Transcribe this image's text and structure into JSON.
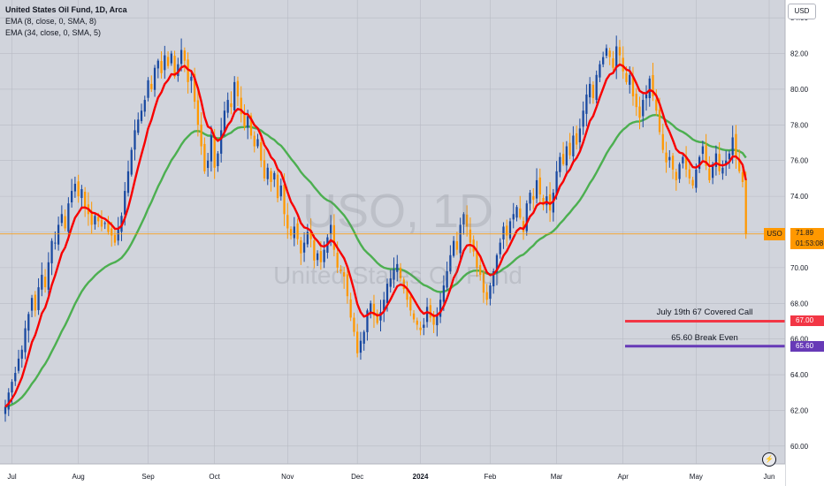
{
  "header": {
    "title": "United States Oil Fund, 1D, Arca",
    "indicators": [
      "EMA (8, close, 0, SMA, 8)",
      "EMA (34, close, 0, SMA, 5)"
    ],
    "currency_button": "USD"
  },
  "watermark": {
    "big": "USO, 1D",
    "small": "United States Oil Fund"
  },
  "price_badge": {
    "symbol": "USO",
    "price": "71.89",
    "countdown": "01:53:08"
  },
  "annotations": [
    {
      "label": "July 19th 67 Covered Call",
      "price": 67.0,
      "badge": "67.00",
      "color": "#f23645"
    },
    {
      "label": "65.60 Break Even",
      "price": 65.6,
      "badge": "65.60",
      "color": "#673ab7"
    }
  ],
  "flash_icon": "lightning-icon",
  "colors": {
    "up": "#1848a0",
    "down": "#ff9800",
    "ema_fast": "#f80000",
    "ema_slow": "#4caf50",
    "background": "#d1d4dc"
  },
  "chart_data": {
    "type": "candlestick",
    "ylim": [
      59,
      85
    ],
    "y_ticks": [
      60,
      62,
      64,
      66,
      68,
      70,
      72,
      74,
      76,
      78,
      80,
      82,
      84
    ],
    "y_tick_labels": [
      "60.00",
      "62.00",
      "64.00",
      "66.00",
      "68.00",
      "70.00",
      "72.00",
      "74.00",
      "76.00",
      "78.00",
      "80.00",
      "82.00",
      "84.00"
    ],
    "x_labels": [
      {
        "label": "Jul",
        "bar": 2
      },
      {
        "label": "Aug",
        "bar": 22
      },
      {
        "label": "Sep",
        "bar": 43
      },
      {
        "label": "Oct",
        "bar": 63
      },
      {
        "label": "Nov",
        "bar": 85
      },
      {
        "label": "Dec",
        "bar": 106
      },
      {
        "label": "2024",
        "bar": 125
      },
      {
        "label": "Feb",
        "bar": 146
      },
      {
        "label": "Mar",
        "bar": 166
      },
      {
        "label": "Apr",
        "bar": 186
      },
      {
        "label": "May",
        "bar": 208
      },
      {
        "label": "Jun",
        "bar": 230
      }
    ],
    "bar_count": 231,
    "close_series": [
      62.2,
      63.0,
      63.6,
      64.1,
      64.9,
      65.4,
      66.6,
      67.4,
      68.3,
      67.6,
      68.9,
      69.6,
      68.9,
      70.3,
      71.5,
      71.4,
      72.4,
      73.0,
      72.2,
      73.6,
      74.3,
      74.7,
      74.0,
      74.4,
      73.4,
      73.0,
      72.4,
      72.9,
      72.6,
      72.3,
      72.5,
      72.0,
      71.8,
      71.4,
      72.2,
      72.9,
      74.3,
      75.4,
      76.6,
      77.7,
      78.3,
      78.8,
      79.4,
      80.5,
      80.0,
      81.2,
      81.6,
      80.9,
      81.9,
      81.3,
      82.0,
      80.7,
      81.4,
      82.2,
      81.6,
      80.4,
      80.7,
      79.3,
      78.0,
      76.8,
      75.4,
      76.0,
      77.4,
      75.6,
      76.4,
      77.7,
      78.8,
      79.4,
      79.0,
      80.4,
      79.6,
      78.6,
      77.9,
      78.5,
      77.4,
      76.8,
      77.2,
      76.0,
      75.0,
      75.6,
      74.8,
      75.3,
      73.9,
      74.6,
      73.0,
      72.2,
      71.8,
      72.3,
      71.6,
      70.8,
      71.4,
      72.0,
      71.6,
      70.4,
      70.8,
      70.3,
      71.0,
      71.7,
      72.4,
      71.0,
      70.0,
      69.8,
      69.5,
      68.4,
      67.2,
      66.4,
      65.2,
      65.9,
      66.4,
      67.6,
      68.0,
      67.3,
      66.9,
      67.5,
      68.2,
      69.1,
      69.4,
      69.9,
      70.2,
      69.4,
      68.8,
      68.2,
      67.6,
      67.1,
      66.8,
      66.5,
      66.8,
      67.8,
      67.2,
      66.8,
      67.4,
      68.2,
      69.0,
      69.8,
      70.7,
      71.5,
      71.0,
      72.4,
      73.0,
      72.3,
      71.4,
      70.9,
      70.0,
      69.6,
      68.6,
      68.2,
      69.0,
      69.8,
      70.7,
      71.4,
      72.3,
      71.8,
      72.6,
      73.0,
      73.4,
      72.8,
      72.0,
      73.6,
      74.2,
      73.8,
      74.9,
      74.1,
      73.5,
      74.0,
      73.2,
      74.2,
      75.4,
      76.2,
      75.8,
      76.8,
      76.3,
      77.4,
      76.9,
      77.8,
      78.8,
      79.7,
      80.3,
      79.5,
      80.8,
      81.4,
      81.8,
      82.3,
      81.8,
      81.2,
      82.4,
      81.9,
      81.0,
      80.4,
      80.8,
      79.6,
      79.0,
      78.4,
      79.4,
      79.7,
      80.6,
      79.6,
      78.8,
      77.6,
      76.6,
      75.9,
      76.2,
      75.5,
      74.9,
      75.8,
      76.2,
      75.5,
      75.0,
      74.6,
      75.5,
      76.2,
      76.8,
      75.7,
      74.9,
      75.8,
      76.4,
      75.4,
      75.6,
      76.0,
      76.4,
      77.3,
      76.2,
      75.4,
      74.8,
      71.89
    ],
    "ema_fast_label": "EMA (8, close, 0, SMA, 8)",
    "ema_slow_label": "EMA (34, close, 0, SMA, 5)",
    "grid": true,
    "last_price": 71.89
  }
}
